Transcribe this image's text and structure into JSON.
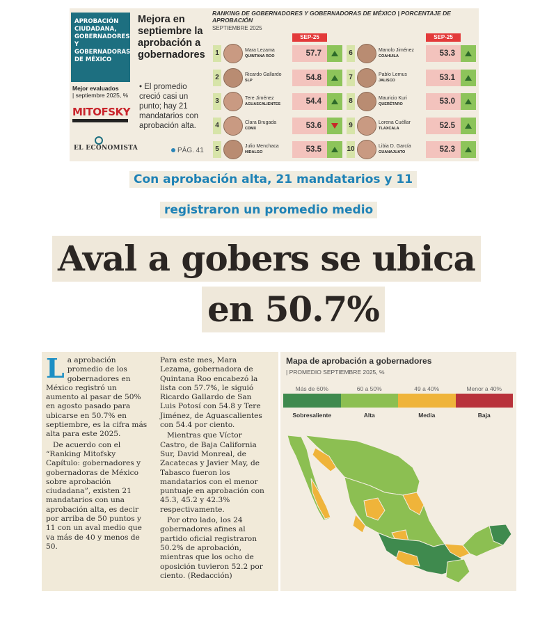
{
  "ranking_clip": {
    "section_label": "APROBACIÓN CIUDADANA, GOBERNADORES Y GOBERNADORAS DE MÉXICO",
    "best_rated": "Mejor evaluados",
    "period": "| septiembre 2025, %",
    "mitofsky": "MITOFSKY",
    "newspaper": "EL ECONOMISTA",
    "headline": "Mejora en septiembre la aprobación a gobernadores",
    "bullet": "• El promedio creció casi un punto; hay 21 mandatarios con aprobación alta.",
    "page_ref": "PÁG. 41",
    "ranking_title": "RANKING DE GOBERNADORES Y GOBERNADORAS DE MÉXICO | PORCENTAJE DE APROBACIÓN",
    "ranking_subtitle": "SEPTIEMBRE 2025",
    "column_header": "SEP-25",
    "left": [
      {
        "rank": "1",
        "name": "Mara Lezama",
        "state": "QUINTANA ROO",
        "score": "57.7",
        "trend": "up"
      },
      {
        "rank": "2",
        "name": "Ricardo Gallardo",
        "state": "SLP",
        "score": "54.8",
        "trend": "up"
      },
      {
        "rank": "3",
        "name": "Tere Jiménez",
        "state": "AGUASCALIENTES",
        "score": "54.4",
        "trend": "up"
      },
      {
        "rank": "4",
        "name": "Clara Brugada",
        "state": "CDMX",
        "score": "53.6",
        "trend": "down"
      },
      {
        "rank": "5",
        "name": "Julio Menchaca",
        "state": "HIDALGO",
        "score": "53.5",
        "trend": "up"
      }
    ],
    "right": [
      {
        "rank": "6",
        "name": "Manolo Jiménez",
        "state": "COAHUILA",
        "score": "53.3",
        "trend": "up"
      },
      {
        "rank": "7",
        "name": "Pablo Lemus",
        "state": "JALISCO",
        "score": "53.1",
        "trend": "up"
      },
      {
        "rank": "8",
        "name": "Mauricio Kuri",
        "state": "QUERÉTARO",
        "score": "53.0",
        "trend": "up"
      },
      {
        "rank": "9",
        "name": "Lorena Cuéllar",
        "state": "TLAXCALA",
        "score": "52.5",
        "trend": "up"
      },
      {
        "rank": "10",
        "name": "Libia D. García",
        "state": "GUANAJUATO",
        "score": "52.3",
        "trend": "up"
      }
    ]
  },
  "subheadline": {
    "line1": "Con aprobación alta, 21 mandatarios y 11",
    "line2": "registraron un promedio medio"
  },
  "headline": {
    "line1": "Aval a gobers se ubica",
    "line2": "en 50.7%"
  },
  "article": {
    "dropcap": "L",
    "p1": "a aprobación promedio de los gobernadores en México registró un aumento al pasar de 50% en agosto pasado para ubicarse en 50.7% en septiembre, es la cifra más alta para este 2025.",
    "p2": "De acuerdo con el “Ranking Mitofsky Capítulo: gobernadores y gobernadoras de México sobre aprobación ciudadana”, existen 21 mandatarios con una aprobación alta, es decir por arriba de 50 puntos y 11 con un aval medio que va más de 40 y menos de 50.",
    "p3": "Para este mes, Mara Lezama, gobernadora de Quintana Roo encabezó la lista con 57.7%, le siguió Ricardo Gallardo de San Luis Potosí con 54.8 y Tere Jiménez, de Aguascalientes con 54.4 por ciento.",
    "p4": "Mientras que Víctor Castro, de Baja California Sur, David Monreal, de Zacatecas y Javier May, de Tabasco fueron los mandatarios con el menor puntuaje en aprobación con 45.3, 45.2 y 42.3% respectivamente.",
    "p5": "Por otro lado, los 24 gobernadores afines al partido oficial registraron 50.2% de aprobación, mientras que los ocho de oposición tuvieron 52.2 por ciento. (Redacción)"
  },
  "map": {
    "title": "Mapa de aprobación a gobernadores",
    "subtitle": "| PROMEDIO SEPTIEMBRE 2025, %",
    "legend": [
      {
        "range": "Más de 60%",
        "name": "Sobresaliente",
        "color": "#3f8a4e"
      },
      {
        "range": "60 a 50%",
        "name": "Alta",
        "color": "#8cbf52"
      },
      {
        "range": "49 a 40%",
        "name": "Media",
        "color": "#efb43a"
      },
      {
        "range": "Menor a 40%",
        "name": "Baja",
        "color": "#b8323b"
      }
    ]
  }
}
